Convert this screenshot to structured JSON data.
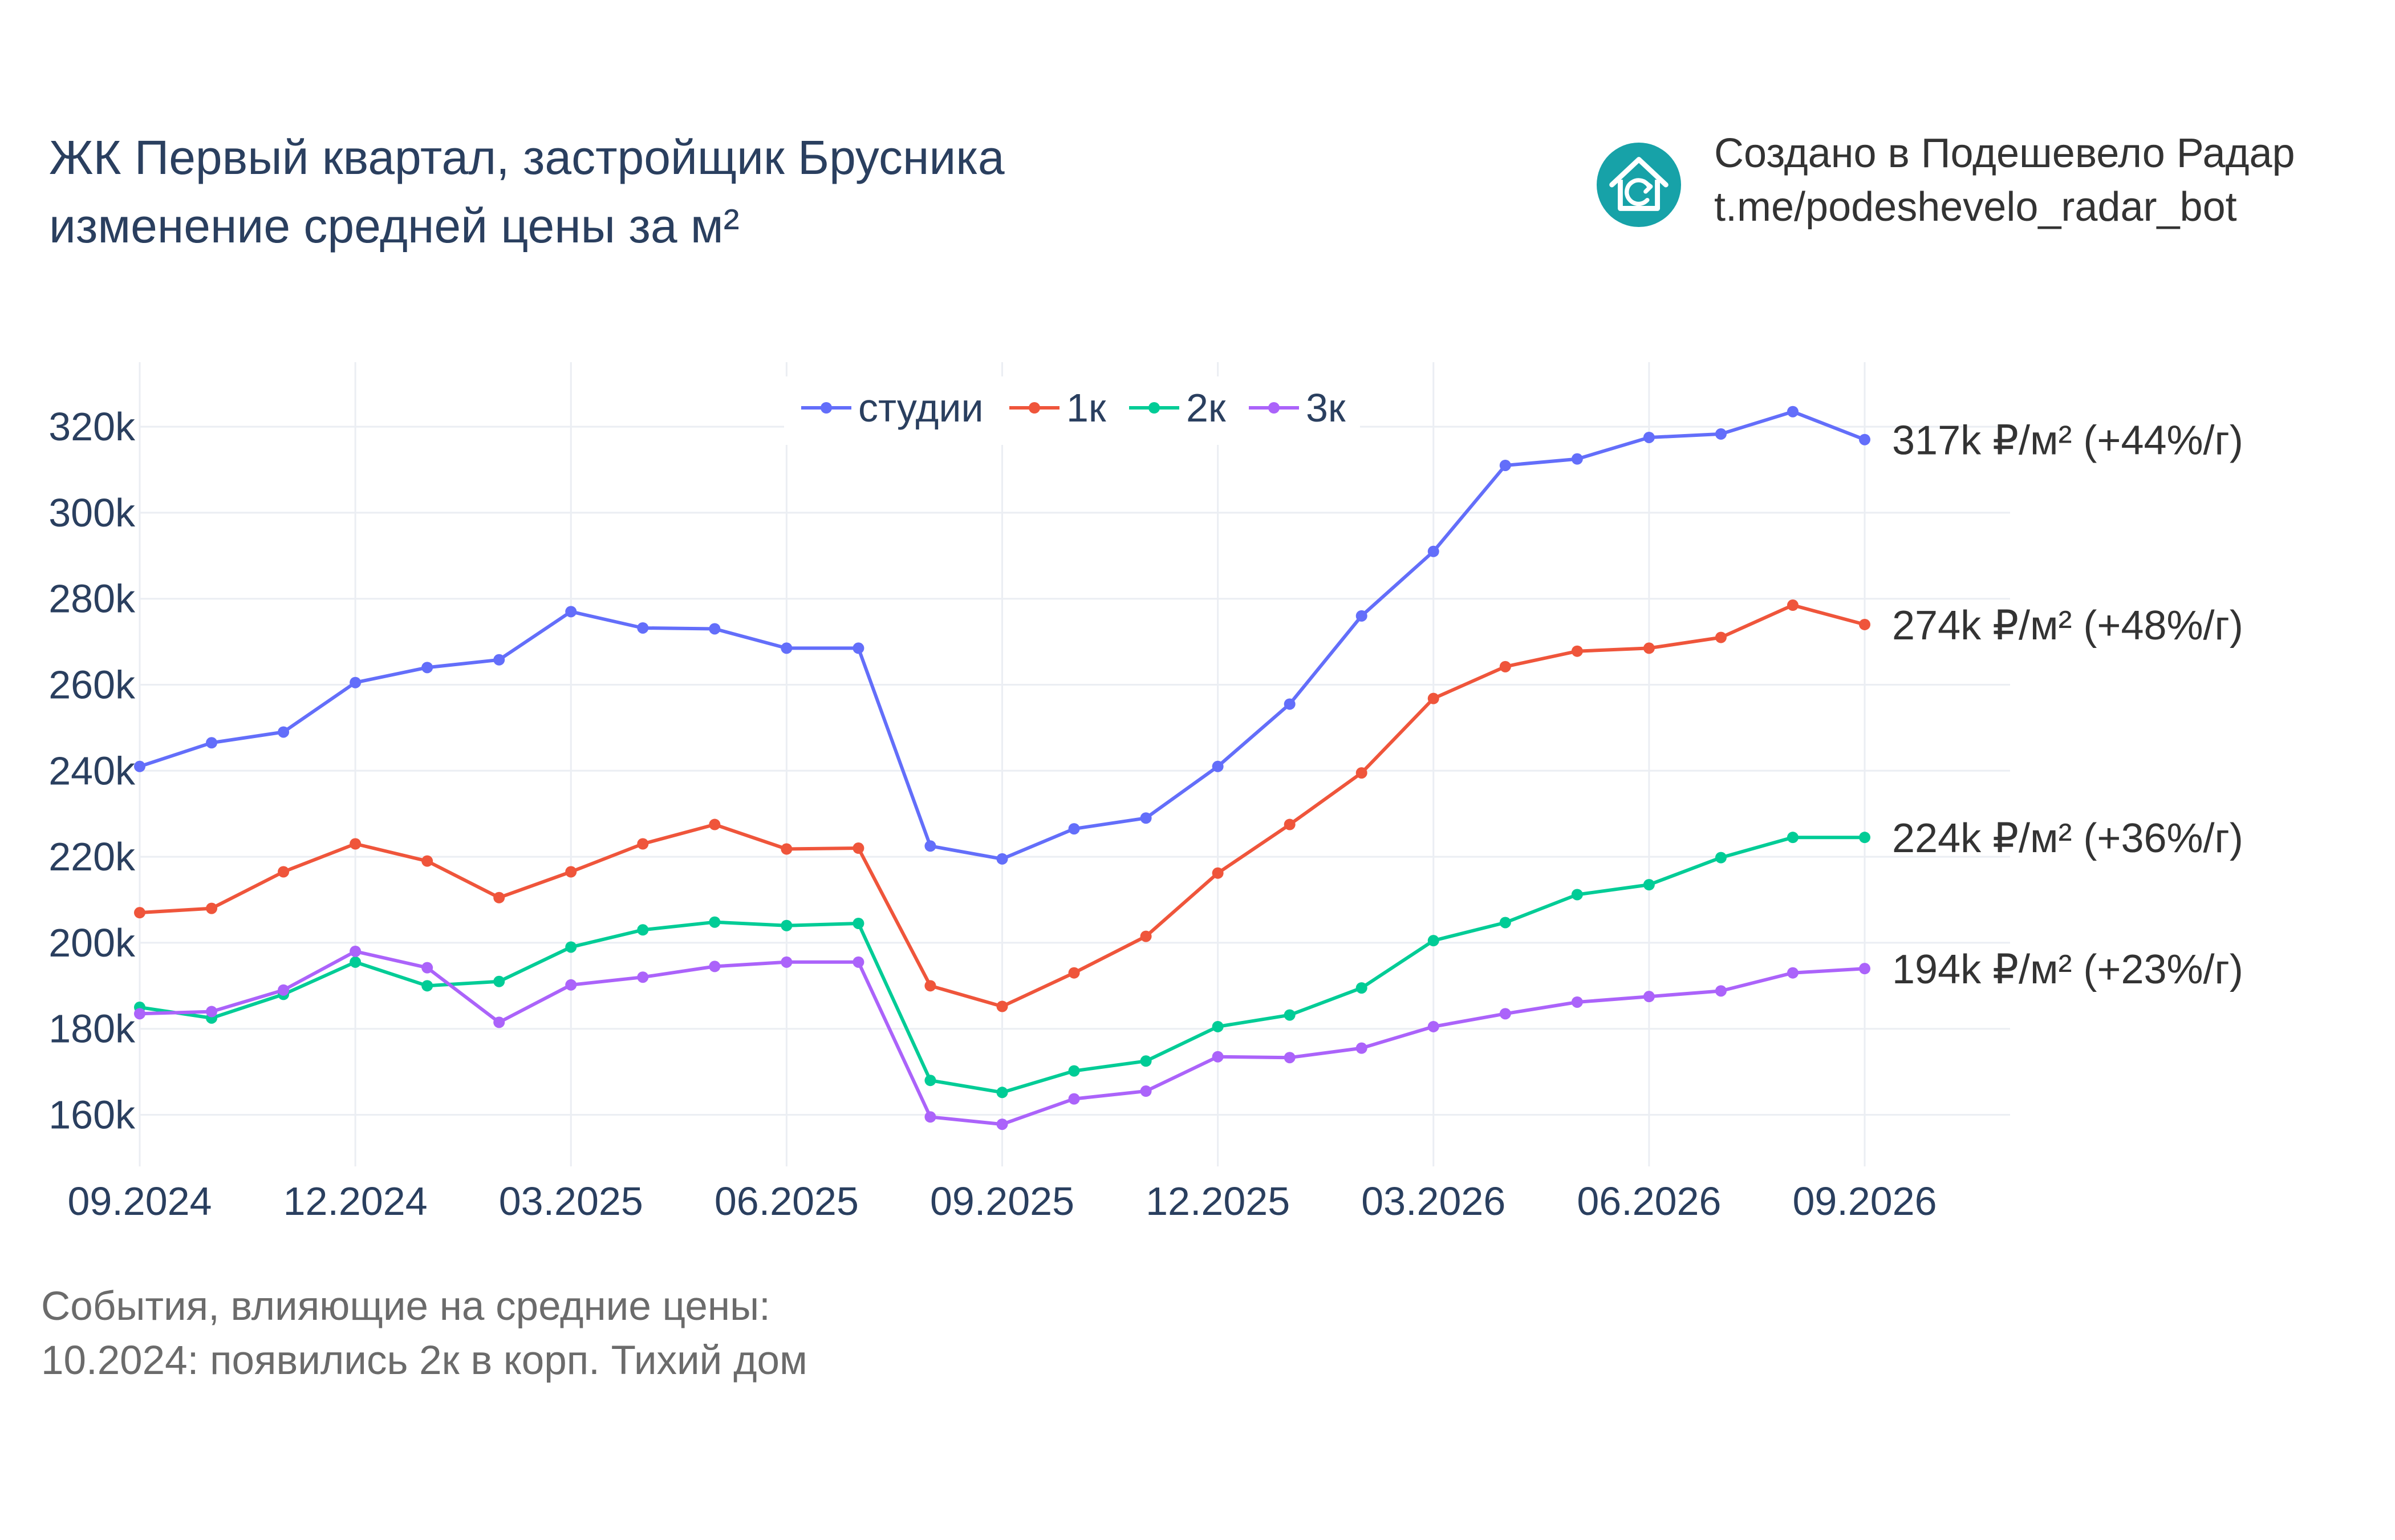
{
  "title": {
    "line1": "ЖК Первый квартал, застройщик Брусника",
    "line2": "изменение средней цены за м²"
  },
  "brand": {
    "icon": "house-refresh-icon",
    "color": "#17a2a8",
    "line1": "Создано в Подешевело Радар",
    "line2": "t.me/podeshevelo_radar_bot"
  },
  "events": {
    "title": "События, влияющие на средние цены:",
    "items": [
      "10.2024: появились 2к в корп. Тихий дом"
    ]
  },
  "chart_data": {
    "type": "line",
    "x": [
      "09.2024",
      "10.2024",
      "11.2024",
      "12.2024",
      "01.2025",
      "02.2025",
      "03.2025",
      "04.2025",
      "05.2025",
      "06.2025",
      "07.2025",
      "08.2025",
      "09.2025",
      "10.2025",
      "11.2025",
      "12.2025",
      "01.2026",
      "02.2026",
      "03.2026",
      "04.2026",
      "05.2026",
      "06.2026",
      "07.2026",
      "08.2026",
      "09.2026"
    ],
    "x_ticks": [
      "09.2024",
      "12.2024",
      "03.2025",
      "06.2025",
      "09.2025",
      "12.2025",
      "03.2026",
      "06.2026",
      "09.2026"
    ],
    "y_ticks": [
      160000,
      180000,
      200000,
      220000,
      240000,
      260000,
      280000,
      300000,
      320000
    ],
    "y_tick_labels": [
      "160k",
      "180k",
      "200k",
      "220k",
      "240k",
      "260k",
      "280k",
      "300k",
      "320k"
    ],
    "ylim": [
      148000,
      335000
    ],
    "grid": true,
    "legend_position": "top-center",
    "series": [
      {
        "name": "студии",
        "color": "#636efa",
        "values": [
          241000,
          246500,
          249000,
          260500,
          264000,
          265800,
          277000,
          273200,
          273000,
          268500,
          268500,
          222500,
          219500,
          226500,
          229000,
          241000,
          255500,
          276000,
          291000,
          311000,
          312500,
          317500,
          318300,
          323500,
          317000
        ],
        "end_label": "317k ₽/м² (+44%/г)"
      },
      {
        "name": "1к",
        "color": "#ef553b",
        "values": [
          207000,
          208000,
          216500,
          223000,
          219000,
          210500,
          216500,
          223000,
          227500,
          221800,
          222000,
          190000,
          185200,
          193000,
          201500,
          216200,
          227500,
          239500,
          256800,
          264200,
          267800,
          268500,
          271000,
          278500,
          274000
        ],
        "end_label": "274k ₽/м² (+48%/г)"
      },
      {
        "name": "2к",
        "color": "#00cc96",
        "values": [
          185000,
          182500,
          188000,
          195500,
          190000,
          191000,
          199000,
          203000,
          204800,
          204000,
          204500,
          168000,
          165200,
          170200,
          172500,
          180500,
          183200,
          189500,
          200500,
          204700,
          211200,
          213500,
          219800,
          224500,
          224500
        ],
        "end_label": "224k ₽/м² (+36%/г)"
      },
      {
        "name": "3к",
        "color": "#ab63fa",
        "values": [
          183500,
          184000,
          189000,
          198000,
          194200,
          181500,
          190200,
          192000,
          194500,
          195500,
          195500,
          159500,
          157800,
          163700,
          165500,
          173500,
          173300,
          175500,
          180500,
          183500,
          186200,
          187500,
          188800,
          193000,
          194000
        ],
        "end_label": "194k ₽/м² (+23%/г)"
      }
    ]
  }
}
